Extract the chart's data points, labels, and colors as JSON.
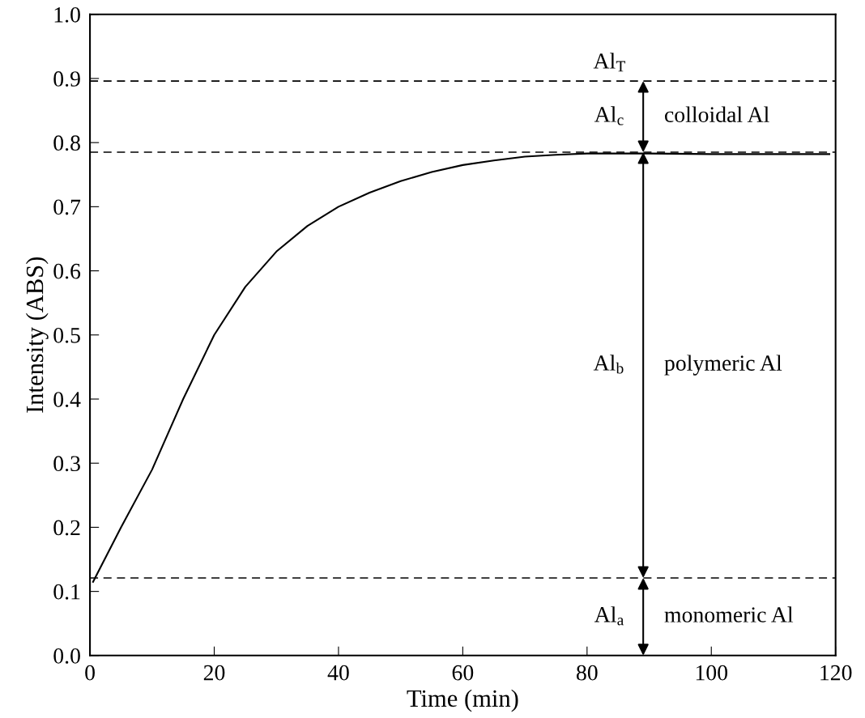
{
  "chart_data": {
    "type": "line",
    "xlabel": "Time (min)",
    "ylabel": "Intensity (ABS)",
    "xlim": [
      0,
      120
    ],
    "xticks": [
      0,
      20,
      40,
      60,
      80,
      100,
      120
    ],
    "ylim": [
      0,
      1.0
    ],
    "yticks": [
      {
        "value": 0,
        "label": "0.0"
      },
      0.1,
      0.2,
      0.3,
      0.4,
      0.5,
      0.6,
      0.7,
      0.8,
      0.9,
      {
        "value": 1.0,
        "label": "1.0"
      }
    ],
    "grid": false,
    "marker": "none",
    "line_style": "solid",
    "series": [
      {
        "color": "#000000",
        "x": [
          0.5,
          5,
          10,
          15,
          20,
          25,
          30,
          35,
          40,
          45,
          50,
          55,
          60,
          65,
          70,
          75,
          80,
          85,
          90,
          100,
          110,
          119
        ],
        "values": [
          0.115,
          0.2,
          0.29,
          0.4,
          0.5,
          0.575,
          0.63,
          0.67,
          0.7,
          0.722,
          0.74,
          0.754,
          0.765,
          0.772,
          0.778,
          0.781,
          0.783,
          0.783,
          0.783,
          0.782,
          0.782,
          0.782
        ]
      }
    ],
    "ref_lines": [
      {
        "axis": "y",
        "value": 0.896,
        "color": "#000000",
        "line_style": "dashed"
      },
      {
        "axis": "y",
        "value": 0.785,
        "color": "#000000",
        "line_style": "dashed"
      },
      {
        "axis": "y",
        "value": 0.121,
        "color": "#000000",
        "line_style": "dashed"
      }
    ],
    "annotations": [
      "Al$_{T}$",
      "Al$_{c}$",
      "colloidal Al",
      "Al$_{b}$",
      "polymeric Al",
      "Al$_{a}$",
      "monomeric Al"
    ]
  }
}
